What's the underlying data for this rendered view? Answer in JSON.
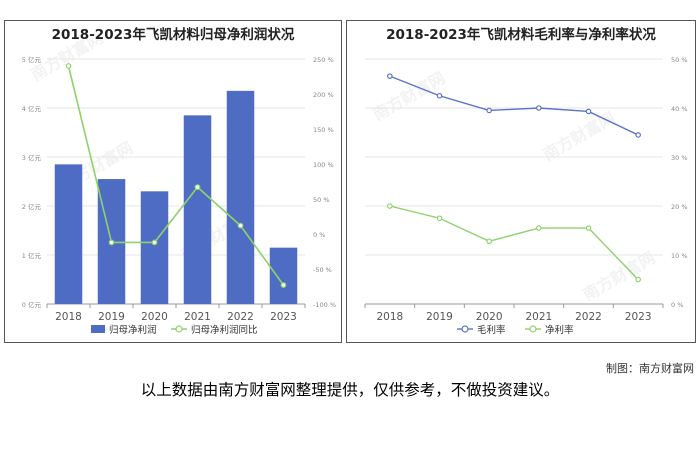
{
  "credit": "制图：南方财富网",
  "disclaimer": "以上数据由南方财富网整理提供，仅供参考，不做投资建议。",
  "watermark": "南方财富网",
  "colors": {
    "bar": "#4f6cc4",
    "green": "#8fd16c",
    "blue": "#5b73c6",
    "axis": "#999999",
    "grid": "#e6e6e6"
  },
  "chart_data": [
    {
      "type": "bar",
      "title": "2018-2023年飞凯材料归母净利润状况",
      "categories": [
        "2018",
        "2019",
        "2020",
        "2021",
        "2022",
        "2023"
      ],
      "y_left": {
        "ticks": [
          "0 亿元",
          "1 亿元",
          "2 亿元",
          "3 亿元",
          "4 亿元",
          "5 亿元"
        ],
        "min": 0,
        "max": 5
      },
      "y_right": {
        "ticks": [
          "-100 %",
          "-50 %",
          "0 %",
          "50 %",
          "100 %",
          "150 %",
          "200 %",
          "250 %"
        ],
        "min": -100,
        "max": 250
      },
      "series": [
        {
          "name": "归母净利润",
          "type": "bar",
          "axis": "left",
          "values": [
            2.85,
            2.55,
            2.3,
            3.85,
            4.35,
            1.15
          ]
        },
        {
          "name": "归母净利润同比",
          "type": "line",
          "axis": "right",
          "values": [
            240,
            -12,
            -12,
            67,
            12,
            -73
          ]
        }
      ],
      "grid": true,
      "legend": "bottom"
    },
    {
      "type": "line",
      "title": "2018-2023年飞凯材料毛利率与净利率状况",
      "categories": [
        "2018",
        "2019",
        "2020",
        "2021",
        "2022",
        "2023"
      ],
      "y_right": {
        "ticks": [
          "0 %",
          "10 %",
          "20 %",
          "30 %",
          "40 %",
          "50 %"
        ],
        "min": 0,
        "max": 50
      },
      "series": [
        {
          "name": "毛利率",
          "values": [
            46.5,
            42.5,
            39.5,
            40.0,
            39.3,
            34.5
          ]
        },
        {
          "name": "净利率",
          "values": [
            20.0,
            17.5,
            12.8,
            15.5,
            15.5,
            5.0
          ]
        }
      ],
      "grid": true,
      "legend": "bottom"
    }
  ]
}
